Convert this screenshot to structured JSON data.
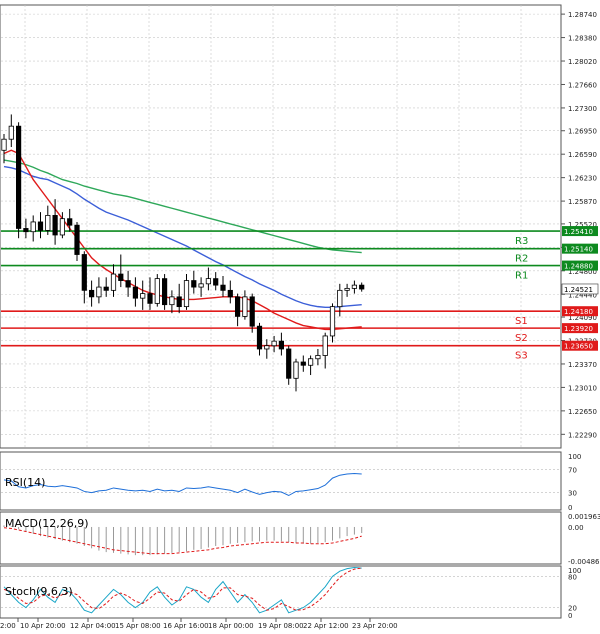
{
  "chart_data": [
    {
      "type": "candlestick",
      "panel": "price",
      "y_axis_ticks": [
        "1.28740",
        "1.28380",
        "1.28020",
        "1.27660",
        "1.27300",
        "1.26950",
        "1.26590",
        "1.26230",
        "1.25870",
        "1.25520",
        "1.25160",
        "1.24800",
        "1.24440",
        "1.24090",
        "1.23730",
        "1.23370",
        "1.23010",
        "1.22650",
        "1.22290"
      ],
      "ylim": [
        1.2208,
        1.2888
      ],
      "grid": true,
      "x_ticks": [
        "2:00",
        "10 Apr 20:00",
        "12 Apr 04:00",
        "15 Apr 08:00",
        "16 Apr 16:00",
        "18 Apr 00:00",
        "19 Apr 08:00",
        "22 Apr 12:00",
        "23 Apr 20:00"
      ],
      "current_price": "1.24521",
      "candles": [
        [
          1.2665,
          1.269,
          1.2645,
          1.2682
        ],
        [
          1.2682,
          1.272,
          1.267,
          1.2702
        ],
        [
          1.2702,
          1.2708,
          1.253,
          1.2545
        ],
        [
          1.2545,
          1.256,
          1.253,
          1.254
        ],
        [
          1.254,
          1.2565,
          1.2525,
          1.2555
        ],
        [
          1.2555,
          1.257,
          1.253,
          1.2542
        ],
        [
          1.2542,
          1.258,
          1.2535,
          1.2565
        ],
        [
          1.2565,
          1.259,
          1.252,
          1.2535
        ],
        [
          1.2535,
          1.257,
          1.253,
          1.256
        ],
        [
          1.256,
          1.2575,
          1.254,
          1.255
        ],
        [
          1.255,
          1.2555,
          1.2495,
          1.2505
        ],
        [
          1.2505,
          1.251,
          1.243,
          1.245
        ],
        [
          1.245,
          1.2465,
          1.2425,
          1.244
        ],
        [
          1.244,
          1.247,
          1.243,
          1.2455
        ],
        [
          1.2455,
          1.247,
          1.244,
          1.245
        ],
        [
          1.245,
          1.249,
          1.244,
          1.2475
        ],
        [
          1.2475,
          1.2505,
          1.2455,
          1.2465
        ],
        [
          1.2465,
          1.248,
          1.244,
          1.2455
        ],
        [
          1.2455,
          1.247,
          1.2425,
          1.2438
        ],
        [
          1.2438,
          1.2465,
          1.242,
          1.2445
        ],
        [
          1.2445,
          1.247,
          1.242,
          1.243
        ],
        [
          1.243,
          1.2475,
          1.2425,
          1.2468
        ],
        [
          1.2468,
          1.2475,
          1.242,
          1.2428
        ],
        [
          1.2428,
          1.245,
          1.2415,
          1.244
        ],
        [
          1.244,
          1.246,
          1.2415,
          1.2425
        ],
        [
          1.2425,
          1.2475,
          1.242,
          1.2465
        ],
        [
          1.2465,
          1.248,
          1.2445,
          1.2455
        ],
        [
          1.2455,
          1.247,
          1.244,
          1.246
        ],
        [
          1.246,
          1.2485,
          1.245,
          1.2468
        ],
        [
          1.2468,
          1.2478,
          1.245,
          1.2458
        ],
        [
          1.2458,
          1.2472,
          1.244,
          1.245
        ],
        [
          1.245,
          1.2465,
          1.243,
          1.244
        ],
        [
          1.244,
          1.2445,
          1.2395,
          1.241
        ],
        [
          1.241,
          1.245,
          1.2405,
          1.244
        ],
        [
          1.244,
          1.2445,
          1.2385,
          1.2395
        ],
        [
          1.2395,
          1.24,
          1.235,
          1.236
        ],
        [
          1.236,
          1.2375,
          1.2345,
          1.2365
        ],
        [
          1.2365,
          1.238,
          1.2355,
          1.2372
        ],
        [
          1.2372,
          1.2385,
          1.235,
          1.236
        ],
        [
          1.236,
          1.2365,
          1.2305,
          1.2315
        ],
        [
          1.2315,
          1.2345,
          1.2295,
          1.234
        ],
        [
          1.234,
          1.235,
          1.2325,
          1.2335
        ],
        [
          1.2335,
          1.235,
          1.232,
          1.2345
        ],
        [
          1.2345,
          1.236,
          1.2335,
          1.235
        ],
        [
          1.235,
          1.2385,
          1.233,
          1.238
        ],
        [
          1.238,
          1.243,
          1.237,
          1.2425
        ],
        [
          1.2425,
          1.246,
          1.241,
          1.245
        ],
        [
          1.245,
          1.246,
          1.244,
          1.2453
        ],
        [
          1.2453,
          1.2465,
          1.2445,
          1.2458
        ],
        [
          1.2458,
          1.2462,
          1.2448,
          1.2452
        ]
      ],
      "moving_averages": [
        {
          "color": "#3c5fd8",
          "values": [
            1.264,
            1.2638,
            1.2635,
            1.263,
            1.2625,
            1.2622,
            1.262,
            1.2615,
            1.261,
            1.2605,
            1.2598,
            1.259,
            1.2583,
            1.2576,
            1.257,
            1.2566,
            1.2562,
            1.2558,
            1.2553,
            1.2548,
            1.2543,
            1.2538,
            1.2533,
            1.2528,
            1.2523,
            1.2518,
            1.2512,
            1.2506,
            1.25,
            1.2494,
            1.2489,
            1.2483,
            1.2477,
            1.2471,
            1.2466,
            1.246,
            1.2455,
            1.245,
            1.2444,
            1.2439,
            1.2434,
            1.243,
            1.2427,
            1.2425,
            1.2424,
            1.2424,
            1.2425,
            1.2426,
            1.2427,
            1.2428
          ]
        },
        {
          "color": "#2fa85a",
          "values": [
            1.265,
            1.2648,
            1.2646,
            1.2643,
            1.2639,
            1.2634,
            1.263,
            1.2625,
            1.262,
            1.2617,
            1.2614,
            1.261,
            1.2607,
            1.2604,
            1.2601,
            1.2598,
            1.2596,
            1.2594,
            1.2591,
            1.2588,
            1.2585,
            1.2582,
            1.2579,
            1.2576,
            1.2573,
            1.257,
            1.2567,
            1.2564,
            1.2561,
            1.2558,
            1.2555,
            1.2552,
            1.2549,
            1.2546,
            1.2543,
            1.254,
            1.2537,
            1.2534,
            1.2531,
            1.2528,
            1.2525,
            1.2522,
            1.2519,
            1.2516,
            1.2514,
            1.2512,
            1.2511,
            1.251,
            1.2509,
            1.2508
          ]
        },
        {
          "color": "#e01a1a",
          "values": [
            1.266,
            1.2665,
            1.266,
            1.264,
            1.262,
            1.2605,
            1.259,
            1.2575,
            1.256,
            1.2545,
            1.253,
            1.2515,
            1.25,
            1.249,
            1.2482,
            1.2475,
            1.2468,
            1.2462,
            1.2456,
            1.245,
            1.2446,
            1.2443,
            1.244,
            1.2438,
            1.2436,
            1.2436,
            1.2436,
            1.2437,
            1.2438,
            1.2439,
            1.244,
            1.244,
            1.244,
            1.2438,
            1.2434,
            1.2428,
            1.2422,
            1.2415,
            1.241,
            1.2405,
            1.24,
            1.2396,
            1.2394,
            1.2392,
            1.239,
            1.239,
            1.2391,
            1.2392,
            1.2393,
            1.2394
          ]
        }
      ],
      "pivot_lines": [
        {
          "label": "R3",
          "value": 1.2541,
          "tag": "1.25410",
          "color": "#0d8a1f"
        },
        {
          "label": "R2",
          "value": 1.2514,
          "tag": "1.25140",
          "color": "#0d8a1f"
        },
        {
          "label": "R1",
          "value": 1.2488,
          "tag": "1.24880",
          "color": "#0d8a1f"
        },
        {
          "label": "S1",
          "value": 1.2418,
          "tag": "1.24180",
          "color": "#e01a1a"
        },
        {
          "label": "S2",
          "value": 1.2392,
          "tag": "1.23920",
          "color": "#e01a1a"
        },
        {
          "label": "S3",
          "value": 1.2365,
          "tag": "1.23650",
          "color": "#e01a1a"
        }
      ]
    },
    {
      "type": "line",
      "panel": "rsi",
      "title": "RSI(14)",
      "y_axis_ticks": [
        "100",
        "70",
        "30",
        "0"
      ],
      "ylim": [
        0,
        100
      ],
      "levels": [
        70,
        30
      ],
      "values": [
        52,
        50,
        40,
        38,
        42,
        44,
        41,
        40,
        42,
        40,
        38,
        32,
        30,
        33,
        34,
        38,
        36,
        34,
        33,
        34,
        32,
        36,
        33,
        34,
        32,
        38,
        37,
        38,
        40,
        38,
        36,
        34,
        30,
        36,
        31,
        27,
        30,
        32,
        31,
        25,
        32,
        33,
        35,
        37,
        43,
        55,
        60,
        62,
        63,
        62
      ]
    },
    {
      "type": "histogram",
      "panel": "macd",
      "title": "MACD(12,26,9)",
      "y_axis_ticks": [
        "0.001963",
        "0.00",
        "-0.004861"
      ],
      "ylim": [
        -0.004861,
        0.001963
      ],
      "histogram": [
        0.0002,
        0.0001,
        -0.0003,
        -0.0006,
        -0.0009,
        -0.0012,
        -0.0014,
        -0.0016,
        -0.0018,
        -0.002,
        -0.0022,
        -0.0025,
        -0.0028,
        -0.0031,
        -0.0033,
        -0.0034,
        -0.0035,
        -0.0036,
        -0.0037,
        -0.0037,
        -0.0037,
        -0.0036,
        -0.0035,
        -0.0034,
        -0.0033,
        -0.0032,
        -0.003,
        -0.0029,
        -0.0027,
        -0.0025,
        -0.0024,
        -0.0022,
        -0.0021,
        -0.002,
        -0.0019,
        -0.0019,
        -0.0018,
        -0.0018,
        -0.0019,
        -0.002,
        -0.0021,
        -0.0022,
        -0.0022,
        -0.0021,
        -0.002,
        -0.0018,
        -0.0015,
        -0.0012,
        -0.001,
        -0.0008
      ],
      "signal": [
        -0.0001,
        -0.0002,
        -0.0004,
        -0.0006,
        -0.0008,
        -0.001,
        -0.0012,
        -0.0014,
        -0.0016,
        -0.0018,
        -0.002,
        -0.0022,
        -0.0024,
        -0.0026,
        -0.0028,
        -0.003,
        -0.0031,
        -0.0032,
        -0.0033,
        -0.0034,
        -0.0035,
        -0.0035,
        -0.0035,
        -0.0035,
        -0.0034,
        -0.0033,
        -0.0032,
        -0.0031,
        -0.003,
        -0.0028,
        -0.0027,
        -0.0025,
        -0.0024,
        -0.0023,
        -0.0022,
        -0.0021,
        -0.002,
        -0.002,
        -0.002,
        -0.002,
        -0.0021,
        -0.0021,
        -0.0022,
        -0.0022,
        -0.0022,
        -0.0021,
        -0.0019,
        -0.0017,
        -0.0015,
        -0.0012
      ]
    },
    {
      "type": "line",
      "panel": "stoch",
      "title": "Stoch(9,6,3)",
      "y_axis_ticks": [
        "100",
        "80",
        "20",
        "0"
      ],
      "ylim": [
        0,
        100
      ],
      "levels": [
        80,
        20
      ],
      "series": [
        {
          "color": "#1aa6c8",
          "values": [
            60,
            45,
            30,
            20,
            35,
            55,
            40,
            30,
            55,
            50,
            35,
            15,
            10,
            25,
            40,
            55,
            45,
            30,
            20,
            30,
            50,
            60,
            40,
            25,
            35,
            60,
            55,
            40,
            30,
            55,
            70,
            50,
            30,
            45,
            30,
            10,
            15,
            25,
            35,
            10,
            15,
            20,
            30,
            45,
            60,
            80,
            90,
            95,
            97,
            96
          ]
        },
        {
          "color": "#e01a1a",
          "values": [
            55,
            50,
            38,
            28,
            30,
            42,
            45,
            38,
            45,
            50,
            45,
            32,
            20,
            18,
            28,
            42,
            48,
            42,
            32,
            28,
            38,
            50,
            48,
            35,
            32,
            45,
            55,
            50,
            38,
            42,
            58,
            58,
            45,
            42,
            38,
            25,
            15,
            18,
            28,
            22,
            15,
            16,
            22,
            32,
            45,
            62,
            78,
            88,
            94,
            96
          ]
        }
      ]
    }
  ]
}
